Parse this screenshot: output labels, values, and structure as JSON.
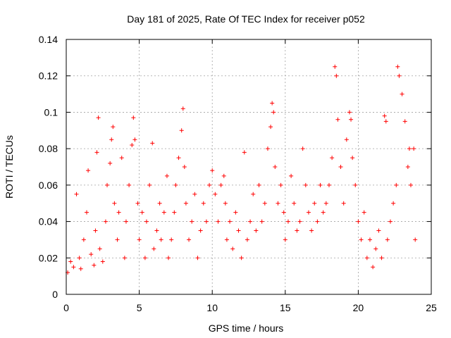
{
  "chart_data": {
    "type": "scatter",
    "title": "Day 181 of 2025, Rate Of TEC Index for receiver p052",
    "xlabel": "GPS time / hours",
    "ylabel": "ROTI / TECUs",
    "xlim": [
      0,
      25
    ],
    "ylim": [
      0,
      0.14
    ],
    "xticks": [
      0,
      5,
      10,
      15,
      20,
      25
    ],
    "yticks": [
      0,
      0.02,
      0.04,
      0.06,
      0.08,
      0.1,
      0.12,
      0.14
    ],
    "xtick_labels": [
      "0",
      "5",
      "10",
      "15",
      "20",
      "25"
    ],
    "ytick_labels": [
      "0",
      "0.02",
      "0.04",
      "0.06",
      "0.08",
      "0.1",
      "0.12",
      "0.14"
    ],
    "grid": true,
    "marker": "+",
    "color": "#ff0000",
    "series": [
      {
        "name": "ROTI",
        "x": [
          0.1,
          0.3,
          0.5,
          0.7,
          0.9,
          1.0,
          1.2,
          1.4,
          1.5,
          1.7,
          1.9,
          2.0,
          2.1,
          2.2,
          2.3,
          2.5,
          2.7,
          2.8,
          3.0,
          3.1,
          3.2,
          3.3,
          3.5,
          3.6,
          3.8,
          4.0,
          4.1,
          4.3,
          4.5,
          4.6,
          4.7,
          4.9,
          5.0,
          5.2,
          5.4,
          5.5,
          5.7,
          5.9,
          6.0,
          6.2,
          6.4,
          6.5,
          6.7,
          6.9,
          7.0,
          7.2,
          7.4,
          7.5,
          7.7,
          7.9,
          8.0,
          8.1,
          8.2,
          8.4,
          8.6,
          8.8,
          9.0,
          9.2,
          9.4,
          9.6,
          9.8,
          10.0,
          10.2,
          10.4,
          10.6,
          10.8,
          10.9,
          11.0,
          11.2,
          11.4,
          11.6,
          11.8,
          12.0,
          12.2,
          12.4,
          12.6,
          12.8,
          13.0,
          13.2,
          13.4,
          13.6,
          13.8,
          14.0,
          14.1,
          14.2,
          14.3,
          14.5,
          14.7,
          14.9,
          15.0,
          15.2,
          15.4,
          15.6,
          15.8,
          16.0,
          16.2,
          16.4,
          16.6,
          16.8,
          17.0,
          17.2,
          17.4,
          17.6,
          17.8,
          18.0,
          18.2,
          18.4,
          18.5,
          18.6,
          18.8,
          19.0,
          19.2,
          19.4,
          19.5,
          19.6,
          19.8,
          20.0,
          20.2,
          20.4,
          20.6,
          20.8,
          21.0,
          21.2,
          21.4,
          21.6,
          21.8,
          21.9,
          22.0,
          22.2,
          22.4,
          22.6,
          22.7,
          22.8,
          23.0,
          23.2,
          23.4,
          23.5,
          23.6,
          23.8,
          23.9
        ],
        "y": [
          0.012,
          0.018,
          0.015,
          0.055,
          0.02,
          0.014,
          0.03,
          0.045,
          0.068,
          0.022,
          0.016,
          0.035,
          0.078,
          0.097,
          0.025,
          0.018,
          0.04,
          0.06,
          0.072,
          0.085,
          0.092,
          0.05,
          0.03,
          0.045,
          0.075,
          0.02,
          0.04,
          0.06,
          0.082,
          0.097,
          0.085,
          0.05,
          0.03,
          0.045,
          0.02,
          0.04,
          0.06,
          0.083,
          0.025,
          0.035,
          0.05,
          0.03,
          0.045,
          0.065,
          0.02,
          0.03,
          0.045,
          0.06,
          0.075,
          0.09,
          0.102,
          0.07,
          0.05,
          0.03,
          0.04,
          0.055,
          0.02,
          0.035,
          0.05,
          0.04,
          0.06,
          0.068,
          0.055,
          0.04,
          0.06,
          0.065,
          0.05,
          0.03,
          0.04,
          0.025,
          0.045,
          0.035,
          0.02,
          0.078,
          0.03,
          0.04,
          0.055,
          0.035,
          0.06,
          0.04,
          0.05,
          0.08,
          0.092,
          0.105,
          0.1,
          0.07,
          0.05,
          0.06,
          0.045,
          0.03,
          0.04,
          0.065,
          0.05,
          0.035,
          0.04,
          0.08,
          0.06,
          0.045,
          0.035,
          0.05,
          0.04,
          0.06,
          0.045,
          0.05,
          0.06,
          0.075,
          0.125,
          0.12,
          0.096,
          0.07,
          0.05,
          0.085,
          0.1,
          0.096,
          0.075,
          0.06,
          0.04,
          0.03,
          0.045,
          0.02,
          0.03,
          0.015,
          0.025,
          0.035,
          0.02,
          0.098,
          0.095,
          0.03,
          0.04,
          0.05,
          0.06,
          0.125,
          0.12,
          0.11,
          0.095,
          0.07,
          0.08,
          0.06,
          0.08,
          0.03
        ]
      }
    ]
  }
}
